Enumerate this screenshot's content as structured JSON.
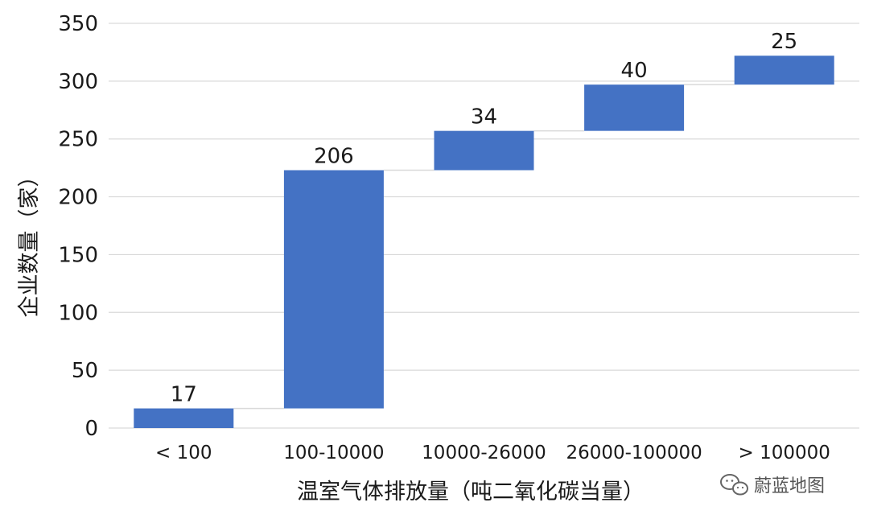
{
  "chart_data": {
    "type": "waterfall",
    "title": "",
    "xlabel": "温室气体排放量（吨二氧化碳当量）",
    "ylabel": "企业数量（家）",
    "categories": [
      "< 100",
      "100-10000",
      "10000-26000",
      "26000-100000",
      "> 100000"
    ],
    "values": [
      17,
      206,
      34,
      40,
      25
    ],
    "data_labels": [
      "17",
      "206",
      "34",
      "40",
      "25"
    ],
    "ylim": [
      0,
      350
    ],
    "yticks": [
      0,
      50,
      100,
      150,
      200,
      250,
      300,
      350
    ],
    "ytick_labels": [
      "0",
      "50",
      "100",
      "150",
      "200",
      "250",
      "300",
      "350"
    ],
    "grid": true,
    "bar_color": "#4472C4",
    "gridline_color": "#d9d9d9",
    "connector_color": "#d9d9d9"
  },
  "watermark": {
    "icon": "wechat-icon",
    "text": "蔚蓝地图"
  }
}
